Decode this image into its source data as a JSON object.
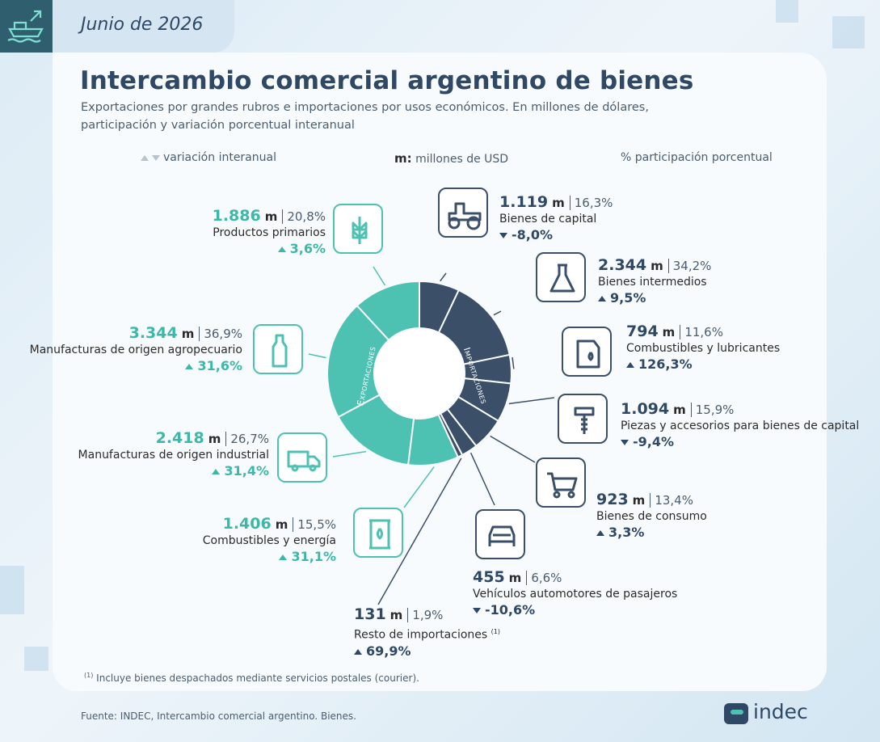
{
  "header": {
    "date": "Junio de 2026"
  },
  "title": "Intercambio comercial argentino de bienes",
  "subtitle": [
    "Exportaciones por grandes rubros e importaciones por usos económicos. En millones de dólares,",
    "participación y variación porcentual interanual"
  ],
  "legend": {
    "variation": "variación interanual",
    "unit_symbol": "m:",
    "unit_text": "millones de USD",
    "share": "% participación porcentual"
  },
  "unit": "m",
  "chart_data": [
    {
      "type": "donut",
      "name": "Exportaciones",
      "color": "#4dc2b3",
      "categories": [
        "Productos primarios",
        "Manufacturas de origen agropecuario",
        "Manufacturas de origen industrial",
        "Combustibles y energía"
      ],
      "values": [
        1886,
        3344,
        2418,
        1406
      ],
      "value_labels": [
        "1.886",
        "3.344",
        "2.418",
        "1.406"
      ],
      "shares": [
        "20,8%",
        "36,9%",
        "26,7%",
        "15,5%"
      ],
      "changes": [
        3.6,
        31.6,
        31.4,
        31.1
      ],
      "change_labels": [
        "3,6%",
        "31,6%",
        "31,4%",
        "31,1%"
      ]
    },
    {
      "type": "donut",
      "name": "Importaciones",
      "color": "#3b5068",
      "categories": [
        "Bienes de capital",
        "Bienes intermedios",
        "Combustibles y lubricantes",
        "Piezas y accesorios para bienes de capital",
        "Bienes de consumo",
        "Vehículos automotores de pasajeros",
        "Resto de importaciones"
      ],
      "values": [
        1119,
        2344,
        794,
        1094,
        923,
        455,
        131
      ],
      "value_labels": [
        "1.119",
        "2.344",
        "794",
        "1.094",
        "923",
        "455",
        "131"
      ],
      "shares": [
        "16,3%",
        "34,2%",
        "11,6%",
        "15,9%",
        "13,4%",
        "6,6%",
        "1,9%"
      ],
      "changes": [
        -8.0,
        9.5,
        126.3,
        -9.4,
        3.3,
        -10.6,
        69.9
      ],
      "change_labels": [
        "-8,0%",
        "9,5%",
        "126,3%",
        "-9,4%",
        "3,3%",
        "-10,6%",
        "69,9%"
      ]
    }
  ],
  "footnote": {
    "marker": "(1)",
    "text": "Incluye bienes despachados mediante servicios postales (courier)."
  },
  "source": "Fuente: INDEC, Intercambio comercial argentino. Bienes.",
  "logo": "indec"
}
